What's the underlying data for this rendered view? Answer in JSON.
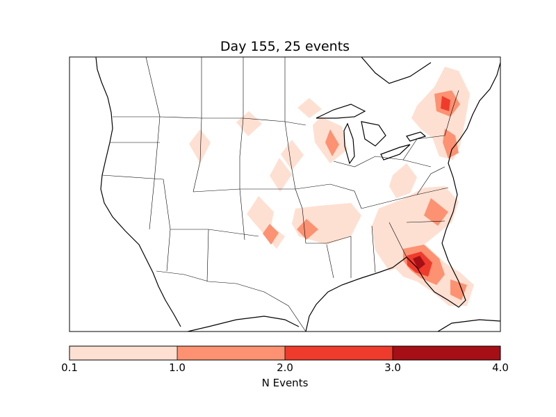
{
  "map": {
    "title": "Day 155, 25 events",
    "region": "Continental United States",
    "projection": "Lambert Conformal"
  },
  "colorbar": {
    "label": "N Events",
    "ticks": [
      "0.1",
      "1.0",
      "2.0",
      "3.0",
      "4.0"
    ],
    "bins": [
      {
        "min": 0.1,
        "max": 1.0,
        "color": "#fee0d2"
      },
      {
        "min": 1.0,
        "max": 2.0,
        "color": "#fc9272"
      },
      {
        "min": 2.0,
        "max": 3.0,
        "color": "#ef3b2c"
      },
      {
        "min": 3.0,
        "max": 4.0,
        "color": "#a50f15"
      }
    ]
  },
  "colors": {
    "low": "#fee0d2",
    "mid": "#fc9272",
    "high": "#ef3b2c",
    "max": "#a50f15",
    "border": "#000000"
  }
}
